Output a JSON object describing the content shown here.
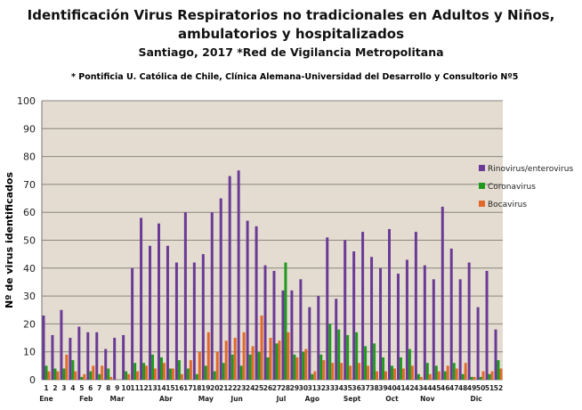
{
  "chart_data": {
    "type": "bar",
    "title": "Identificación Virus Respiratorios no tradicionales en Adultos y Niños,",
    "title_line2": "ambulatorios y hospitalizados",
    "subtitle": "Santiago, 2017 *Red de Vigilancia Metropolitana",
    "note": "* Pontificia U. Católica de Chile, Clínica Alemana-Universidad del Desarrollo y Consultorio Nº5",
    "ylabel": "Nº de virus identificados",
    "xlabel": "",
    "ylim": [
      0,
      100
    ],
    "yticks": [
      0,
      10,
      20,
      30,
      40,
      50,
      60,
      70,
      80,
      90,
      100
    ],
    "grid": true,
    "legend_position": "right",
    "categories": [
      1,
      2,
      3,
      4,
      5,
      6,
      7,
      8,
      9,
      10,
      11,
      12,
      13,
      14,
      15,
      16,
      17,
      18,
      19,
      20,
      21,
      22,
      23,
      24,
      25,
      26,
      27,
      28,
      29,
      30,
      31,
      32,
      33,
      34,
      35,
      36,
      37,
      38,
      39,
      40,
      41,
      42,
      43,
      44,
      45,
      46,
      47,
      48,
      49,
      50,
      51,
      52
    ],
    "months": [
      {
        "label": "Ene",
        "week": 1
      },
      {
        "label": "Feb",
        "week": 5.5
      },
      {
        "label": "Mar",
        "week": 9
      },
      {
        "label": "Abr",
        "week": 14.5
      },
      {
        "label": "May",
        "week": 19
      },
      {
        "label": "Jun",
        "week": 22.5
      },
      {
        "label": "Jul",
        "week": 27.5
      },
      {
        "label": "Ago",
        "week": 31
      },
      {
        "label": "Sept",
        "week": 35.5
      },
      {
        "label": "Oct",
        "week": 40
      },
      {
        "label": "Nov",
        "week": 44
      },
      {
        "label": "Dic",
        "week": 49.5
      }
    ],
    "series": [
      {
        "name": "Rinovirus/enterovirus",
        "color": "#6a3a96",
        "values": [
          23,
          16,
          25,
          15,
          19,
          17,
          17,
          11,
          15,
          16,
          40,
          58,
          48,
          56,
          48,
          42,
          60,
          42,
          45,
          60,
          65,
          73,
          75,
          57,
          55,
          41,
          39,
          32,
          32,
          36,
          26,
          30,
          51,
          29,
          50,
          46,
          53,
          44,
          40,
          54,
          38,
          43,
          53,
          41,
          36,
          62,
          47,
          36,
          42,
          26,
          39,
          18
        ]
      },
      {
        "name": "Coronavirus",
        "color": "#1f9a1f",
        "values": [
          5,
          4,
          4,
          7,
          1,
          3,
          2,
          4,
          0,
          3,
          6,
          6,
          9,
          8,
          4,
          7,
          4,
          2,
          5,
          3,
          6,
          9,
          5,
          9,
          10,
          8,
          13,
          42,
          9,
          10,
          2,
          9,
          20,
          18,
          16,
          17,
          12,
          13,
          8,
          5,
          8,
          11,
          2,
          6,
          5,
          3,
          6,
          2,
          1,
          1,
          2,
          7
        ]
      },
      {
        "name": "Bocavirus",
        "color": "#e2692a",
        "values": [
          3,
          3,
          9,
          3,
          2,
          5,
          5,
          1,
          0,
          2,
          3,
          5,
          4,
          6,
          4,
          2,
          7,
          10,
          17,
          10,
          14,
          15,
          17,
          12,
          23,
          15,
          14,
          17,
          8,
          11,
          3,
          7,
          6,
          6,
          5,
          6,
          5,
          3,
          3,
          4,
          4,
          5,
          1,
          2,
          3,
          5,
          4,
          6,
          1,
          3,
          3,
          4
        ]
      }
    ]
  }
}
